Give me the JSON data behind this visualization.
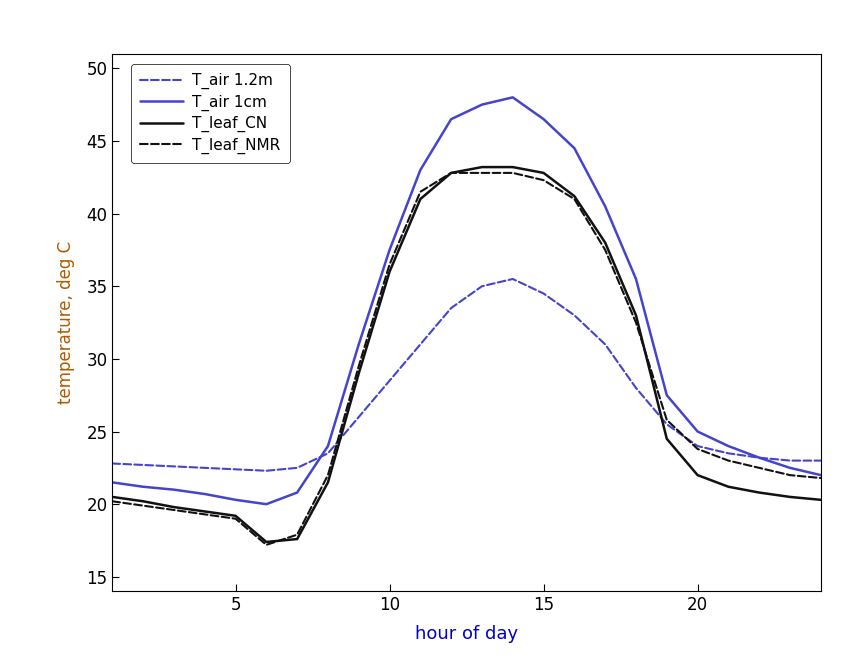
{
  "title": "",
  "xlabel": "hour of day",
  "ylabel": "temperature, deg C",
  "xlabel_color": "#0000cc",
  "ylabel_color": "#b05a00",
  "xlim": [
    1,
    24
  ],
  "ylim": [
    14,
    51
  ],
  "yticks": [
    15,
    20,
    25,
    30,
    35,
    40,
    45,
    50
  ],
  "xticks": [
    5,
    10,
    15,
    20
  ],
  "background_color": "#ffffff",
  "legend_labels": [
    "T_air 1.2m",
    "T_air 1cm",
    "T_leaf_CN",
    "T_leaf_NMR"
  ],
  "series_order": [
    "T_air_1_2m",
    "T_air_1cm",
    "T_leaf_CN",
    "T_leaf_NMR"
  ],
  "series": {
    "T_air_1_2m": {
      "color": "#4444cc",
      "linestyle": "--",
      "linewidth": 1.5,
      "x": [
        1,
        2,
        3,
        4,
        5,
        6,
        7,
        8,
        9,
        10,
        11,
        12,
        13,
        14,
        15,
        16,
        17,
        18,
        19,
        20,
        21,
        22,
        23,
        24
      ],
      "y": [
        22.8,
        22.7,
        22.6,
        22.5,
        22.4,
        22.3,
        22.5,
        23.5,
        26.0,
        28.5,
        31.0,
        33.5,
        35.0,
        35.5,
        34.5,
        33.0,
        31.0,
        28.0,
        25.5,
        24.0,
        23.5,
        23.2,
        23.0,
        23.0
      ]
    },
    "T_air_1cm": {
      "color": "#4444cc",
      "linestyle": "-",
      "linewidth": 1.8,
      "x": [
        1,
        2,
        3,
        4,
        5,
        6,
        7,
        8,
        9,
        10,
        11,
        12,
        13,
        14,
        15,
        16,
        17,
        18,
        19,
        20,
        21,
        22,
        23,
        24
      ],
      "y": [
        21.5,
        21.2,
        21.0,
        20.7,
        20.3,
        20.0,
        20.8,
        24.0,
        31.0,
        37.5,
        43.0,
        46.5,
        47.5,
        48.0,
        46.5,
        44.5,
        40.5,
        35.5,
        27.5,
        25.0,
        24.0,
        23.2,
        22.5,
        22.0
      ]
    },
    "T_leaf_CN": {
      "color": "#111111",
      "linestyle": "-",
      "linewidth": 1.8,
      "x": [
        1,
        2,
        3,
        4,
        5,
        6,
        7,
        8,
        9,
        10,
        11,
        12,
        13,
        14,
        15,
        16,
        17,
        18,
        19,
        20,
        21,
        22,
        23,
        24
      ],
      "y": [
        20.5,
        20.2,
        19.8,
        19.5,
        19.2,
        17.4,
        17.6,
        21.5,
        29.0,
        36.0,
        41.0,
        42.8,
        43.2,
        43.2,
        42.8,
        41.2,
        38.0,
        33.0,
        24.5,
        22.0,
        21.2,
        20.8,
        20.5,
        20.3
      ]
    },
    "T_leaf_NMR": {
      "color": "#111111",
      "linestyle": "--",
      "linewidth": 1.5,
      "x": [
        1,
        2,
        3,
        4,
        5,
        6,
        7,
        8,
        9,
        10,
        11,
        12,
        13,
        14,
        15,
        16,
        17,
        18,
        19,
        20,
        21,
        22,
        23,
        24
      ],
      "y": [
        20.2,
        19.9,
        19.6,
        19.3,
        19.0,
        17.2,
        17.9,
        22.0,
        29.5,
        36.5,
        41.5,
        42.8,
        42.8,
        42.8,
        42.3,
        41.0,
        37.5,
        32.5,
        25.8,
        23.8,
        23.0,
        22.5,
        22.0,
        21.8
      ]
    }
  }
}
